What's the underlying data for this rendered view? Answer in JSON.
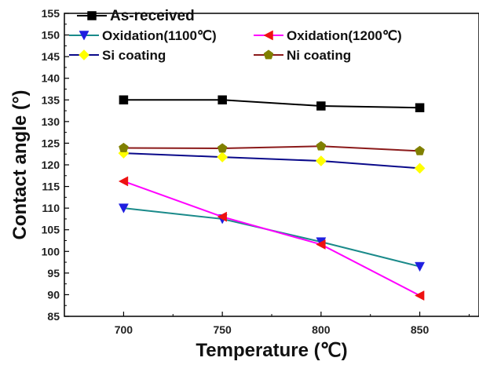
{
  "chart_data": {
    "type": "line",
    "xlabel": "Temperature (℃)",
    "ylabel": "Contact angle (°)",
    "xlim": [
      670,
      880
    ],
    "ylim": [
      85,
      155
    ],
    "x_ticks": [
      700,
      750,
      800,
      850
    ],
    "y_ticks": [
      85,
      90,
      95,
      100,
      105,
      110,
      115,
      120,
      125,
      130,
      135,
      140,
      145,
      150,
      155
    ],
    "x": [
      700,
      750,
      800,
      850
    ],
    "grid": false,
    "legend_position": "top",
    "series": [
      {
        "name": "As-received",
        "values": [
          135.0,
          135.0,
          133.6,
          133.2
        ],
        "color": "#000000",
        "marker": "square",
        "marker_color": "#000000"
      },
      {
        "name": "Oxidation(1100℃)",
        "values": [
          110.0,
          107.5,
          102.2,
          96.5
        ],
        "color": "#1a8a8a",
        "marker": "triangle-down",
        "marker_color": "#1f1fe0"
      },
      {
        "name": "Oxidation(1200℃)",
        "values": [
          116.2,
          108.0,
          101.6,
          89.8
        ],
        "color": "#ff00ff",
        "marker": "triangle-left",
        "marker_color": "#ee1111"
      },
      {
        "name": "Si coating",
        "values": [
          122.7,
          121.8,
          120.9,
          119.2
        ],
        "color": "#0a0a8a",
        "marker": "diamond",
        "marker_color": "#ffff00"
      },
      {
        "name": "Ni coating",
        "values": [
          123.9,
          123.8,
          124.3,
          123.2
        ],
        "color": "#8b1a1a",
        "marker": "pentagon",
        "marker_color": "#808000"
      }
    ]
  }
}
